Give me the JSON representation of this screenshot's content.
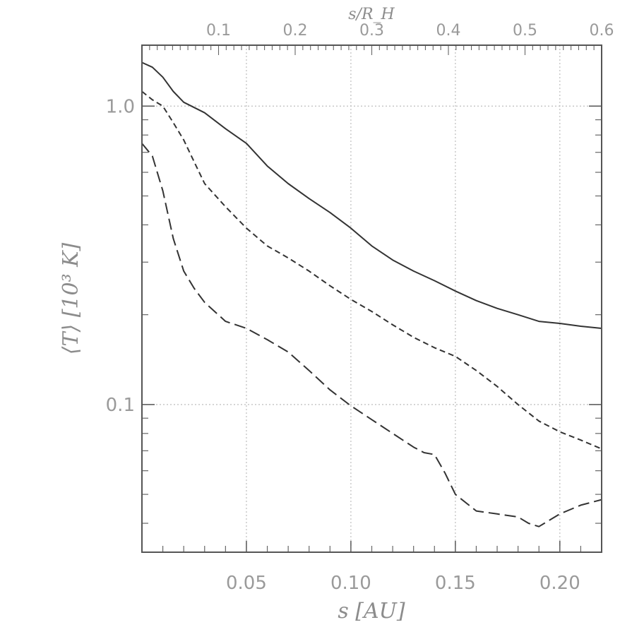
{
  "chart_data": {
    "type": "line",
    "title": "",
    "xlabel": "s   [AU]",
    "ylabel": "⟨T⟩  [10³ K]",
    "x2label": "s/R_H",
    "xlim": [
      0.0,
      0.22
    ],
    "ylim": [
      0.032,
      1.6
    ],
    "yscale": "log",
    "x2lim": [
      0.0,
      0.6
    ],
    "grid": true,
    "x_ticks": [
      {
        "value": 0.05,
        "label": "0.05"
      },
      {
        "value": 0.1,
        "label": "0.10"
      },
      {
        "value": 0.15,
        "label": "0.15"
      },
      {
        "value": 0.2,
        "label": "0.20"
      }
    ],
    "x2_ticks": [
      {
        "value": 0.1,
        "label": "0.1"
      },
      {
        "value": 0.2,
        "label": "0.2"
      },
      {
        "value": 0.3,
        "label": "0.3"
      },
      {
        "value": 0.4,
        "label": "0.4"
      },
      {
        "value": 0.5,
        "label": "0.5"
      },
      {
        "value": 0.6,
        "label": "0.6"
      }
    ],
    "y_ticks": [
      {
        "value": 1.0,
        "label": "1.0"
      },
      {
        "value": 0.1,
        "label": "0.1"
      }
    ],
    "series": [
      {
        "style": "solid",
        "color": "#333333",
        "x": [
          0.0,
          0.005,
          0.01,
          0.015,
          0.02,
          0.03,
          0.04,
          0.05,
          0.06,
          0.07,
          0.08,
          0.09,
          0.1,
          0.11,
          0.12,
          0.13,
          0.14,
          0.15,
          0.16,
          0.17,
          0.18,
          0.19,
          0.2,
          0.21,
          0.22
        ],
        "y": [
          1.4,
          1.35,
          1.25,
          1.12,
          1.03,
          0.95,
          0.84,
          0.75,
          0.63,
          0.55,
          0.49,
          0.44,
          0.39,
          0.34,
          0.305,
          0.28,
          0.26,
          0.24,
          0.223,
          0.21,
          0.2,
          0.19,
          0.187,
          0.183,
          0.18
        ]
      },
      {
        "style": "dashed",
        "color": "#333333",
        "x": [
          0.0,
          0.005,
          0.01,
          0.015,
          0.02,
          0.025,
          0.03,
          0.04,
          0.05,
          0.06,
          0.07,
          0.08,
          0.09,
          0.1,
          0.11,
          0.12,
          0.13,
          0.14,
          0.15,
          0.16,
          0.17,
          0.18,
          0.19,
          0.2,
          0.21,
          0.22
        ],
        "y": [
          1.12,
          1.05,
          1.0,
          0.88,
          0.77,
          0.65,
          0.55,
          0.46,
          0.39,
          0.34,
          0.31,
          0.28,
          0.25,
          0.225,
          0.205,
          0.185,
          0.168,
          0.155,
          0.145,
          0.13,
          0.115,
          0.1,
          0.088,
          0.081,
          0.076,
          0.071
        ]
      },
      {
        "style": "long-dashed",
        "color": "#333333",
        "x": [
          0.0,
          0.005,
          0.01,
          0.015,
          0.02,
          0.025,
          0.03,
          0.04,
          0.05,
          0.06,
          0.07,
          0.08,
          0.09,
          0.1,
          0.11,
          0.12,
          0.13,
          0.135,
          0.14,
          0.145,
          0.15,
          0.16,
          0.17,
          0.18,
          0.185,
          0.19,
          0.2,
          0.21,
          0.22
        ],
        "y": [
          0.75,
          0.68,
          0.52,
          0.36,
          0.28,
          0.245,
          0.22,
          0.19,
          0.18,
          0.165,
          0.15,
          0.13,
          0.112,
          0.099,
          0.089,
          0.08,
          0.072,
          0.069,
          0.068,
          0.059,
          0.05,
          0.044,
          0.043,
          0.042,
          0.04,
          0.039,
          0.043,
          0.046,
          0.048
        ]
      }
    ]
  }
}
